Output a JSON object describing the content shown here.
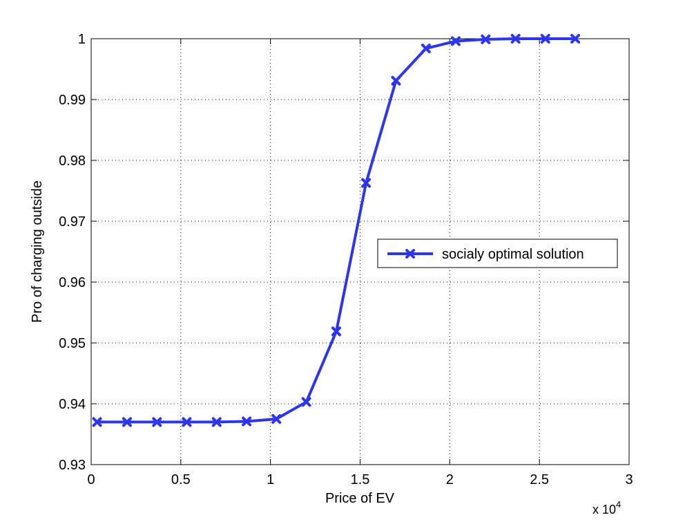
{
  "chart_data": {
    "type": "line",
    "title": "",
    "xlabel": "Price of EV",
    "ylabel": "Pro of charging outside",
    "x_multiplier_label": "x 10",
    "x_multiplier_exp": "4",
    "xlim": [
      0,
      3
    ],
    "ylim": [
      0.93,
      1.0
    ],
    "x_ticks": [
      0,
      0.5,
      1,
      1.5,
      2,
      2.5,
      3
    ],
    "x_tick_labels": [
      "0",
      "0.5",
      "1",
      "1.5",
      "2",
      "2.5",
      "3"
    ],
    "y_ticks": [
      0.93,
      0.94,
      0.95,
      0.96,
      0.97,
      0.98,
      0.99,
      1.0
    ],
    "y_tick_labels": [
      "0.93",
      "0.94",
      "0.95",
      "0.96",
      "0.97",
      "0.98",
      "0.99",
      "1"
    ],
    "grid": true,
    "legend_position": "right",
    "series": [
      {
        "name": "socialy optimal solution",
        "color": "#2e35f0",
        "marker": "x",
        "x": [
          0.033,
          0.2,
          0.367,
          0.533,
          0.7,
          0.867,
          1.033,
          1.2,
          1.367,
          1.533,
          1.7,
          1.867,
          2.033,
          2.2,
          2.367,
          2.533,
          2.7
        ],
        "y": [
          0.937,
          0.937,
          0.937,
          0.937,
          0.937,
          0.9371,
          0.9375,
          0.9403,
          0.9519,
          0.9763,
          0.9931,
          0.9984,
          0.9996,
          0.9999,
          1.0,
          1.0,
          1.0
        ]
      }
    ]
  }
}
